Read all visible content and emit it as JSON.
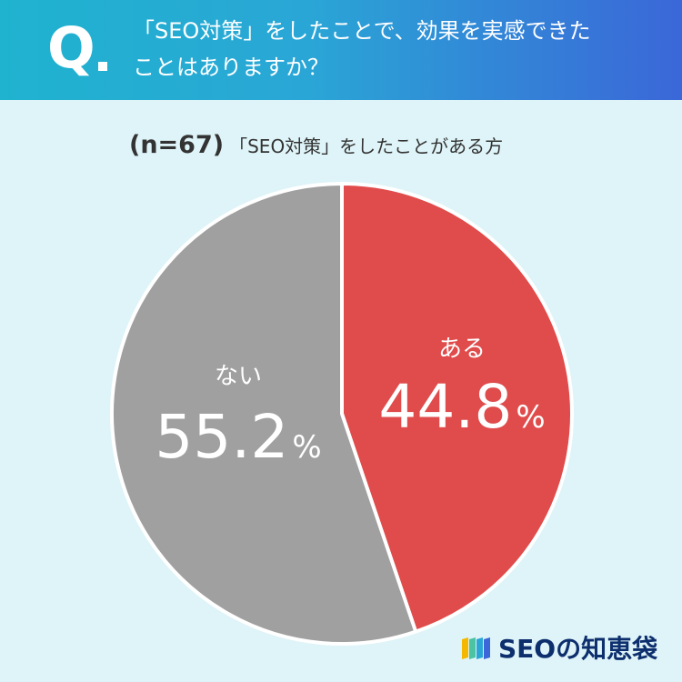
{
  "header": {
    "q_mark": "Q",
    "question_line_1": "「SEO対策」をしたことで、効果を実感できた",
    "question_line_2": "ことはありますか？"
  },
  "subtitle": {
    "n": "(n=67)",
    "label": "「SEO対策」をしたことがある方"
  },
  "chart_data": {
    "type": "pie",
    "slices": [
      {
        "label": "ある",
        "value": 44.8,
        "display": "44.8",
        "unit": "%",
        "color": "#e04b4b"
      },
      {
        "label": "ない",
        "value": 55.2,
        "display": "55.2",
        "unit": "%",
        "color": "#a0a0a0"
      }
    ],
    "start": "12 o'clock",
    "direction": "clockwise"
  },
  "logo": {
    "text": "SEOの知恵袋",
    "icon": "stacked-books-icon",
    "icon_colors": [
      "#f5b800",
      "#4cc3a3",
      "#2aa6d6",
      "#3b67d8"
    ]
  }
}
